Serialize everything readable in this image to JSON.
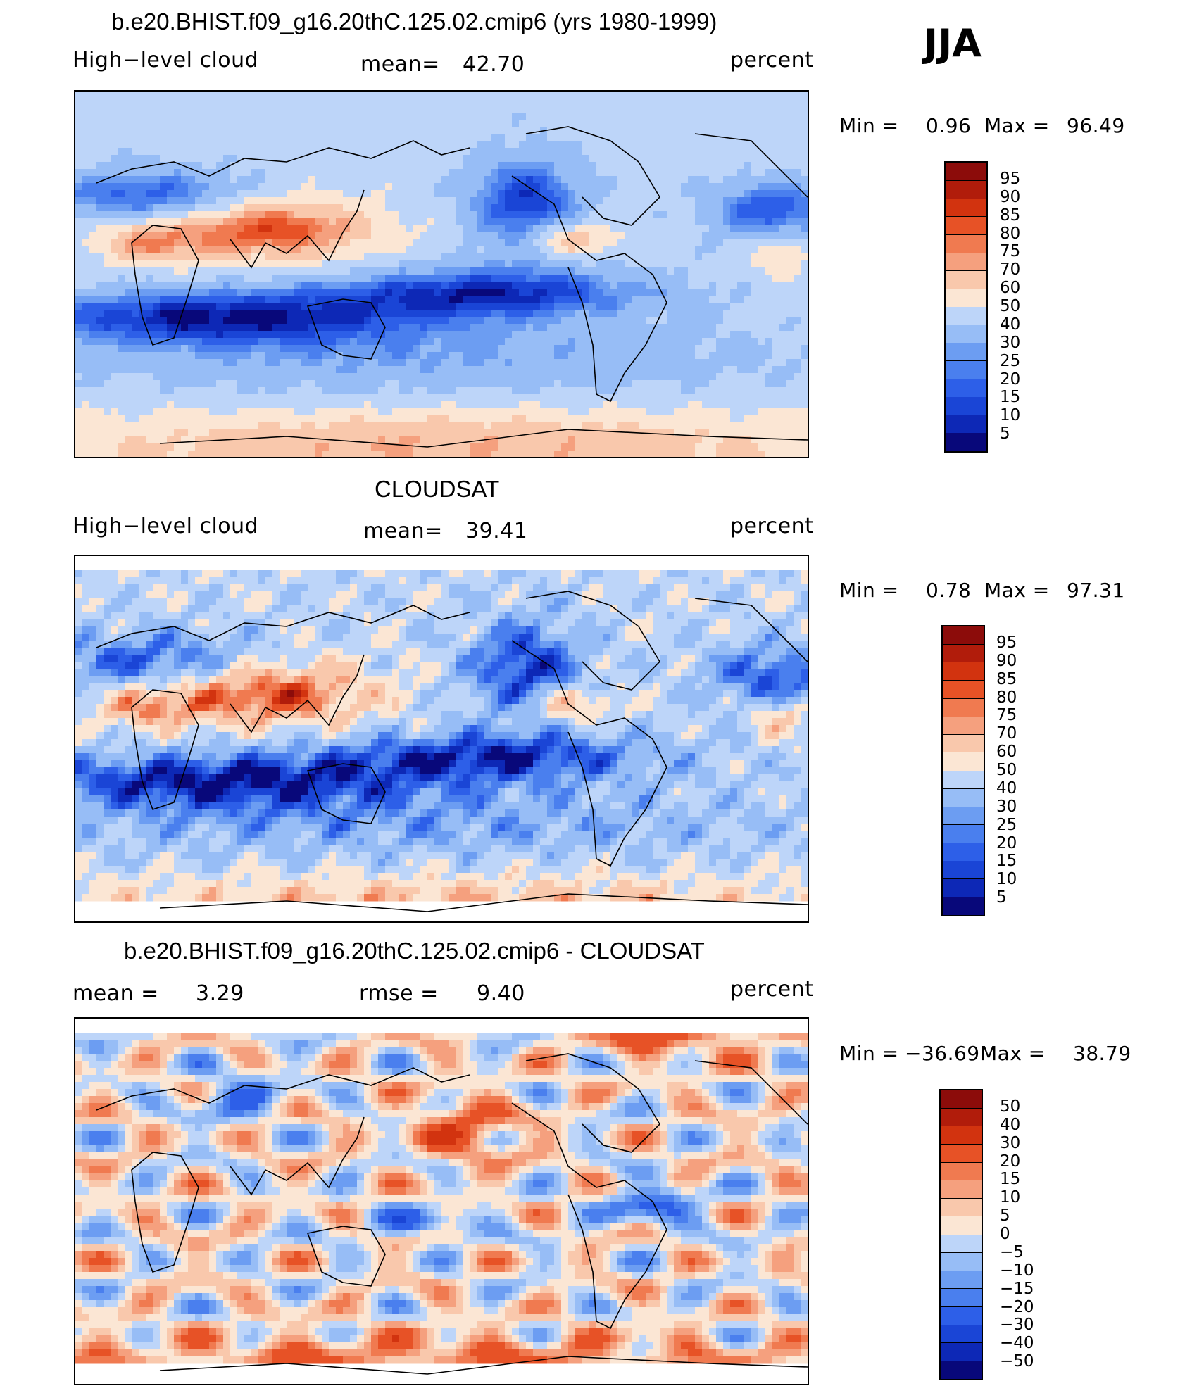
{
  "figure": {
    "season": "JJA",
    "units": "percent"
  },
  "colors": {
    "low_scale": [
      "#08087a",
      "#0d28b6",
      "#1a45d6",
      "#2d5fe8",
      "#4a7fee",
      "#6c9df2",
      "#97bdf6",
      "#bdd5f9",
      "#d8e8fb",
      "#fbe6d4",
      "#f9c8ac",
      "#f5a07e",
      "#f07a50",
      "#e75226",
      "#d2330f",
      "#b11c0b",
      "#8c0c0a"
    ],
    "coast": "#000000"
  },
  "chart_data": [
    {
      "type": "heatmap",
      "panel": "model",
      "title": "b.e20.BHIST.f09_g16.20thC.125.02.cmip6 (yrs 1980-1999)",
      "variable": "High−level cloud",
      "mean_label": "mean=",
      "mean": "42.70",
      "units": "percent",
      "min_label": "Min =",
      "min": "0.96",
      "max_label": "Max =",
      "max": "96.49",
      "levels": [
        "95",
        "90",
        "85",
        "80",
        "75",
        "70",
        "60",
        "50",
        "40",
        "30",
        "25",
        "20",
        "15",
        "10",
        "5"
      ]
    },
    {
      "type": "heatmap",
      "panel": "observations",
      "title": "CLOUDSAT",
      "variable": "High−level cloud",
      "mean_label": "mean=",
      "mean": "39.41",
      "units": "percent",
      "min_label": "Min =",
      "min": "0.78",
      "max_label": "Max =",
      "max": "97.31",
      "levels": [
        "95",
        "90",
        "85",
        "80",
        "75",
        "70",
        "60",
        "50",
        "40",
        "30",
        "25",
        "20",
        "15",
        "10",
        "5"
      ]
    },
    {
      "type": "heatmap",
      "panel": "difference",
      "title": "b.e20.BHIST.f09_g16.20thC.125.02.cmip6 - CLOUDSAT",
      "mean_label": "mean =",
      "mean": "3.29",
      "rmse_label": "rmse =",
      "rmse": "9.40",
      "units": "percent",
      "min_label": "Min =",
      "min": "−36.69",
      "max_label": "Max =",
      "max": "38.79",
      "levels": [
        "50",
        "40",
        "30",
        "20",
        "15",
        "10",
        "5",
        "0",
        "−5",
        "−10",
        "−15",
        "−20",
        "−30",
        "−40",
        "−50"
      ]
    }
  ]
}
